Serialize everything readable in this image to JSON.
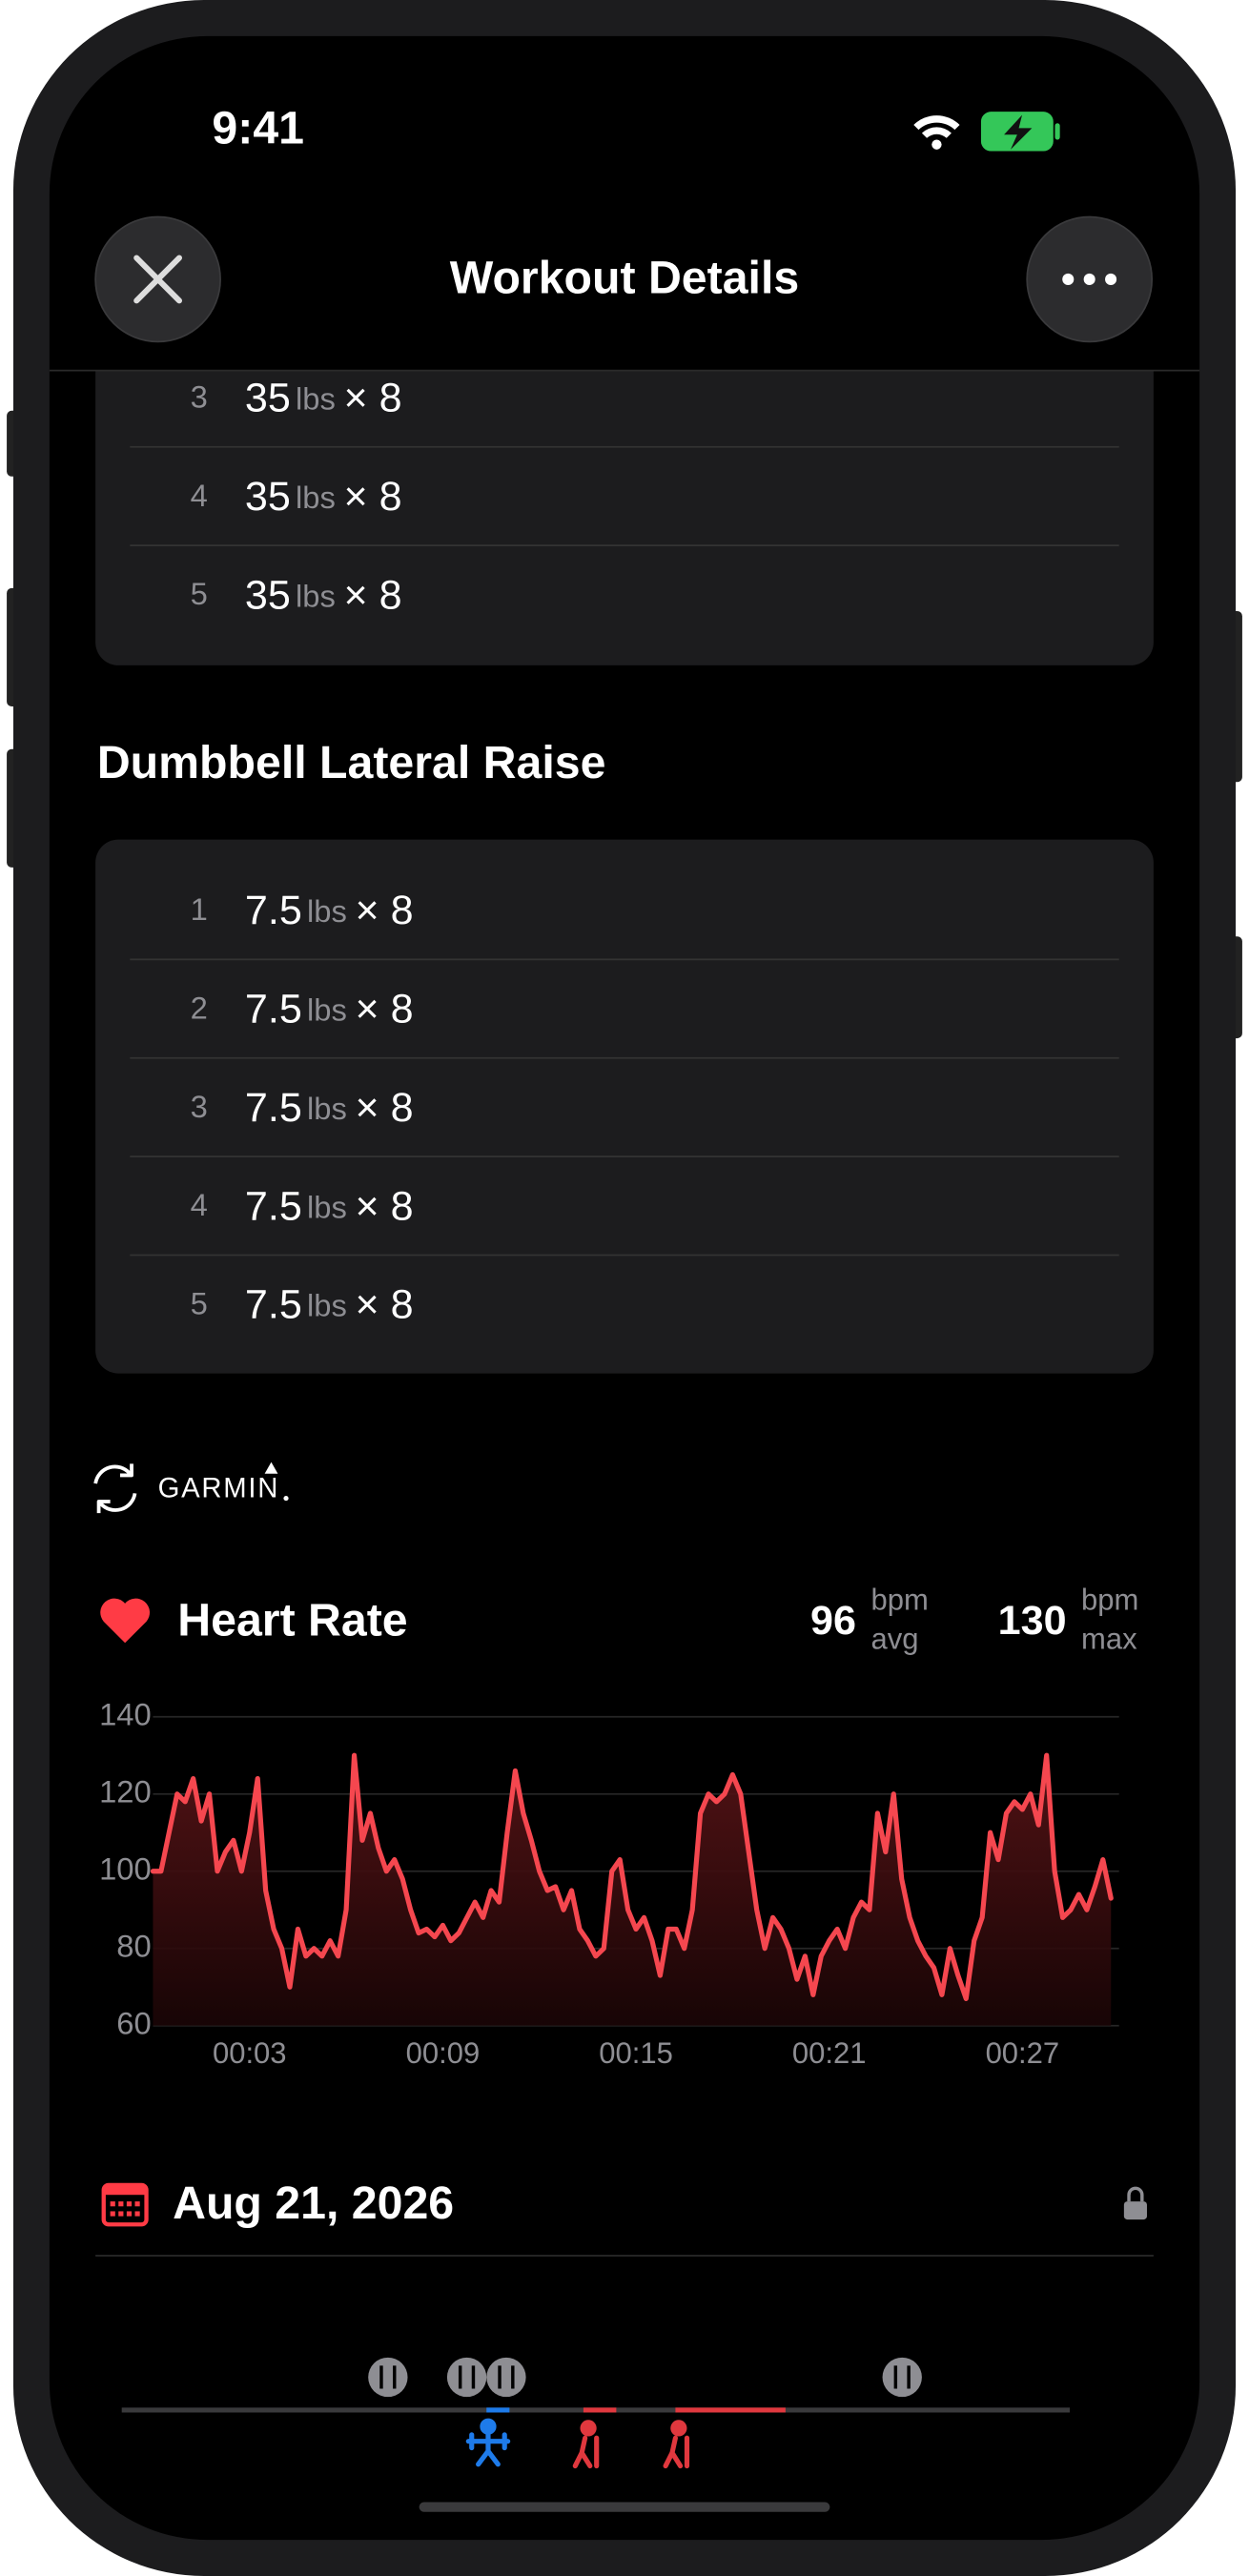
{
  "status_bar": {
    "time": "9:41"
  },
  "header": {
    "title": "Workout Details"
  },
  "sets_top": [
    {
      "index": "3",
      "weight": "35",
      "unit": "lbs",
      "reps": "× 8"
    },
    {
      "index": "4",
      "weight": "35",
      "unit": "lbs",
      "reps": "× 8"
    },
    {
      "index": "5",
      "weight": "35",
      "unit": "lbs",
      "reps": "× 8"
    }
  ],
  "exercise": {
    "name": "Dumbbell Lateral Raise",
    "sets": [
      {
        "index": "1",
        "weight": "7.5",
        "unit": "lbs",
        "reps": "× 8"
      },
      {
        "index": "2",
        "weight": "7.5",
        "unit": "lbs",
        "reps": "× 8"
      },
      {
        "index": "3",
        "weight": "7.5",
        "unit": "lbs",
        "reps": "× 8"
      },
      {
        "index": "4",
        "weight": "7.5",
        "unit": "lbs",
        "reps": "× 8"
      },
      {
        "index": "5",
        "weight": "7.5",
        "unit": "lbs",
        "reps": "× 8"
      }
    ]
  },
  "source": {
    "name": "GARMIN"
  },
  "heart_rate_stats": {
    "avg": {
      "value": 96,
      "unit": "bpm",
      "label": "avg"
    },
    "max": {
      "value": 130,
      "unit": "bpm",
      "label": "max"
    }
  },
  "chart_data": {
    "type": "line",
    "title": "Heart Rate",
    "color": "#f5474f",
    "grid": true,
    "xlim": [
      0,
      30
    ],
    "ylim": [
      60,
      140
    ],
    "xticks": [
      {
        "value": 3,
        "label": "00:03"
      },
      {
        "value": 9,
        "label": "00:09"
      },
      {
        "value": 15,
        "label": "00:15"
      },
      {
        "value": 21,
        "label": "00:21"
      },
      {
        "value": 27,
        "label": "00:27"
      }
    ],
    "yticks": [
      60,
      80,
      100,
      120,
      140
    ],
    "x": [
      0,
      0.25,
      0.5,
      0.75,
      1,
      1.25,
      1.5,
      1.75,
      2,
      2.25,
      2.5,
      2.75,
      3,
      3.25,
      3.5,
      3.75,
      4,
      4.25,
      4.5,
      4.75,
      5,
      5.25,
      5.5,
      5.75,
      6,
      6.25,
      6.5,
      6.75,
      7,
      7.25,
      7.5,
      7.75,
      8,
      8.25,
      8.5,
      8.75,
      9,
      9.25,
      9.5,
      9.75,
      10,
      10.25,
      10.5,
      10.75,
      11,
      11.25,
      11.5,
      11.75,
      12,
      12.25,
      12.5,
      12.75,
      13,
      13.25,
      13.5,
      13.75,
      14,
      14.25,
      14.5,
      14.75,
      15,
      15.25,
      15.5,
      15.75,
      16,
      16.25,
      16.5,
      16.75,
      17,
      17.25,
      17.5,
      17.75,
      18,
      18.25,
      18.5,
      18.75,
      19,
      19.25,
      19.5,
      19.75,
      20,
      20.25,
      20.5,
      20.75,
      21,
      21.25,
      21.5,
      21.75,
      22,
      22.25,
      22.5,
      22.75,
      23,
      23.25,
      23.5,
      23.75,
      24,
      24.25,
      24.5,
      24.75,
      25,
      25.25,
      25.5,
      25.75,
      26,
      26.25,
      26.5,
      26.75,
      27,
      27.25,
      27.5,
      27.75,
      28,
      28.25,
      28.5,
      28.75,
      29,
      29.25,
      29.5,
      29.75
    ],
    "values": [
      100,
      100,
      110,
      120,
      118,
      124,
      113,
      120,
      100,
      105,
      108,
      100,
      110,
      124,
      95,
      85,
      80,
      70,
      85,
      78,
      80,
      78,
      82,
      78,
      90,
      130,
      108,
      115,
      106,
      100,
      103,
      98,
      90,
      84,
      85,
      83,
      86,
      82,
      84,
      88,
      92,
      88,
      95,
      92,
      110,
      126,
      115,
      108,
      100,
      95,
      96,
      90,
      95,
      85,
      82,
      78,
      80,
      100,
      103,
      90,
      85,
      88,
      82,
      73,
      85,
      85,
      80,
      90,
      115,
      120,
      118,
      120,
      125,
      120,
      105,
      90,
      80,
      88,
      85,
      80,
      72,
      78,
      68,
      78,
      82,
      85,
      80,
      88,
      92,
      90,
      115,
      105,
      120,
      98,
      88,
      82,
      78,
      75,
      68,
      80,
      73,
      67,
      82,
      88,
      110,
      103,
      115,
      118,
      116,
      120,
      112,
      130,
      100,
      88,
      90,
      94,
      90,
      96,
      103,
      93
    ]
  },
  "date": {
    "text": "Aug 21, 2026"
  }
}
